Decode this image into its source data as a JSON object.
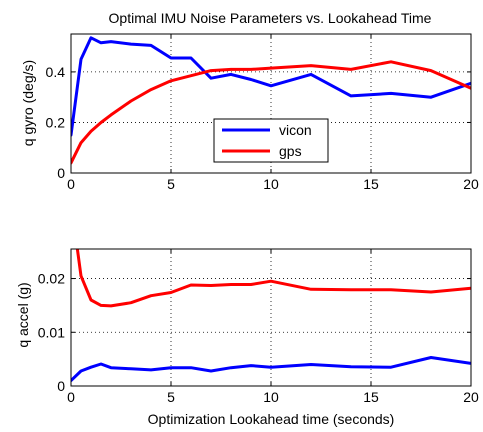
{
  "figure": {
    "title": "Optimal IMU Noise Parameters vs. Lookahead Time"
  },
  "chart_data": [
    {
      "type": "line",
      "title": "Optimal IMU Noise Parameters vs. Lookahead Time",
      "xlabel": "",
      "ylabel": "q gyro (deg/s)",
      "xlim": [
        0,
        20
      ],
      "ylim": [
        0,
        0.55
      ],
      "xticks": [
        0,
        5,
        10,
        15,
        20
      ],
      "yticks": [
        0,
        0.2,
        0.4
      ],
      "xtick_labels": [
        "0",
        "5",
        "10",
        "15",
        "20"
      ],
      "ytick_labels": [
        "0",
        "0.2",
        "0.4"
      ],
      "grid": true,
      "legend": "center",
      "series": [
        {
          "name": "vicon",
          "color": "#0000ff",
          "x": [
            0,
            0.5,
            1,
            1.5,
            2,
            3,
            4,
            5,
            6,
            7,
            8,
            9,
            10,
            12,
            14,
            16,
            18,
            20
          ],
          "y": [
            0.15,
            0.45,
            0.535,
            0.515,
            0.52,
            0.51,
            0.505,
            0.455,
            0.455,
            0.375,
            0.39,
            0.37,
            0.345,
            0.39,
            0.305,
            0.315,
            0.3,
            0.355
          ]
        },
        {
          "name": "gps",
          "color": "#ff0000",
          "x": [
            0,
            0.5,
            1,
            1.5,
            2,
            3,
            4,
            5,
            6,
            7,
            8,
            9,
            10,
            12,
            14,
            16,
            18,
            20
          ],
          "y": [
            0.04,
            0.12,
            0.165,
            0.2,
            0.23,
            0.285,
            0.33,
            0.365,
            0.385,
            0.405,
            0.41,
            0.41,
            0.415,
            0.425,
            0.41,
            0.44,
            0.405,
            0.335
          ]
        }
      ]
    },
    {
      "type": "line",
      "title": "",
      "xlabel": "Optimization Lookahead time (seconds)",
      "ylabel": "q accel (g)",
      "xlim": [
        0,
        20
      ],
      "ylim": [
        0,
        0.0255
      ],
      "xticks": [
        0,
        5,
        10,
        15,
        20
      ],
      "yticks": [
        0,
        0.01,
        0.02
      ],
      "xtick_labels": [
        "0",
        "5",
        "10",
        "15",
        "20"
      ],
      "ytick_labels": [
        "0",
        "0.01",
        "0.02"
      ],
      "grid": true,
      "legend": "none",
      "series": [
        {
          "name": "vicon",
          "color": "#0000ff",
          "x": [
            0,
            0.5,
            1,
            1.5,
            2,
            3,
            4,
            5,
            6,
            7,
            8,
            9,
            10,
            12,
            14,
            16,
            18,
            20
          ],
          "y": [
            0.001,
            0.0028,
            0.0035,
            0.0041,
            0.0034,
            0.0032,
            0.003,
            0.0034,
            0.0034,
            0.0028,
            0.0034,
            0.0038,
            0.0035,
            0.004,
            0.0036,
            0.0035,
            0.0053,
            0.0042
          ]
        },
        {
          "name": "gps",
          "color": "#ff0000",
          "x": [
            0.3,
            0.5,
            1,
            1.5,
            2,
            3,
            4,
            5,
            6,
            7,
            8,
            9,
            10,
            12,
            14,
            16,
            18,
            20
          ],
          "y": [
            0.026,
            0.0205,
            0.016,
            0.015,
            0.0149,
            0.0155,
            0.0168,
            0.0174,
            0.0188,
            0.0187,
            0.0189,
            0.0189,
            0.0195,
            0.018,
            0.0179,
            0.0179,
            0.0175,
            0.0182
          ]
        }
      ]
    }
  ]
}
